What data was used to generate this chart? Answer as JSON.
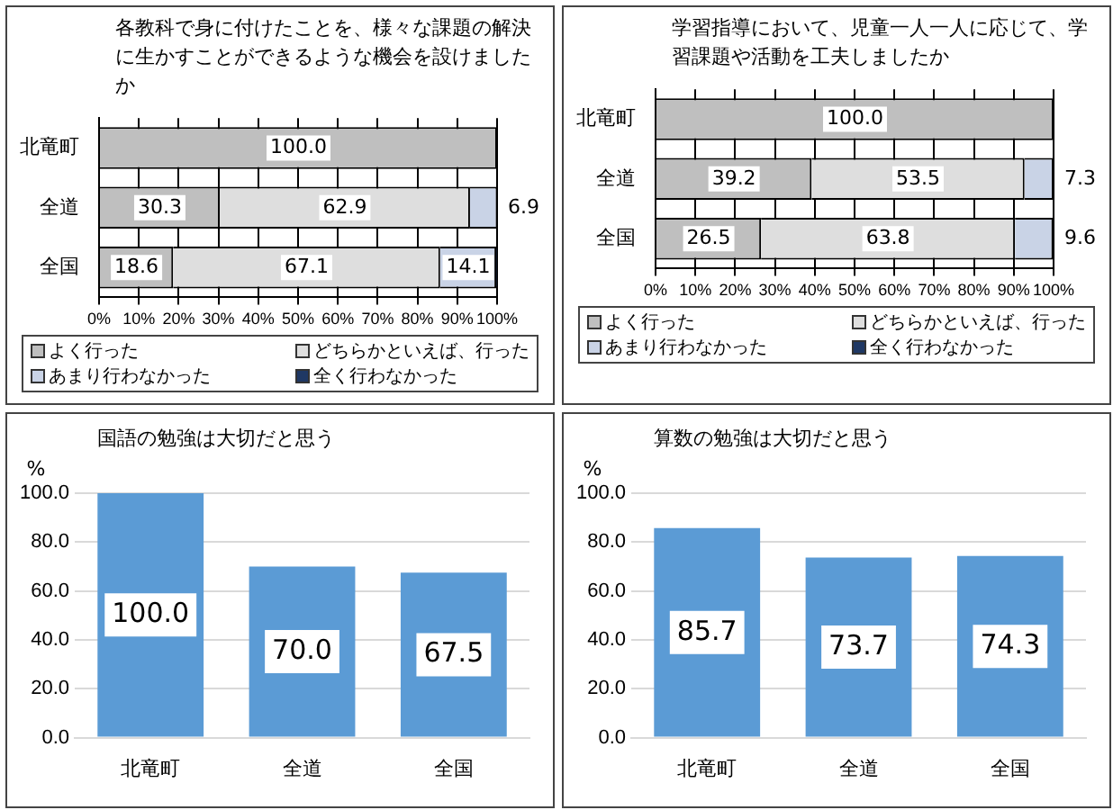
{
  "chart_data": [
    {
      "type": "bar",
      "orientation": "horizontal",
      "stacked": true,
      "title": "各教科で身に付けたことを、様々な課題の解決に生かすことができるような機会を設けましたか",
      "categories": [
        "北竜町",
        "全道",
        "全国"
      ],
      "series": [
        {
          "name": "よく行った",
          "color": "#bfbfbf",
          "values": [
            100,
            30.3,
            18.6
          ],
          "value_labels": [
            "100.0",
            "30.3",
            "18.6"
          ]
        },
        {
          "name": "どちらかといえば、行った",
          "color": "#dedede",
          "values": [
            0,
            62.9,
            67.1
          ],
          "value_labels": [
            null,
            "62.9",
            "67.1"
          ]
        },
        {
          "name": "あまり行わなかった",
          "color": "#c9d3e6",
          "values": [
            0,
            6.9,
            14.1
          ],
          "value_labels": [
            null,
            "6.9",
            "14.1"
          ]
        },
        {
          "name": "全く行わなかった",
          "color": "#1f3864",
          "values": [
            0,
            0,
            0.2
          ],
          "value_labels": [
            null,
            null,
            null
          ]
        }
      ],
      "xlim": [
        0,
        100
      ],
      "xticks": [
        {
          "value": 0,
          "label": "0%"
        },
        {
          "value": 10,
          "label": "10%"
        },
        {
          "value": 20,
          "label": "20%"
        },
        {
          "value": 30,
          "label": "30%"
        },
        {
          "value": 40,
          "label": "40%"
        },
        {
          "value": 50,
          "label": "50%"
        },
        {
          "value": 60,
          "label": "60%"
        },
        {
          "value": 70,
          "label": "70%"
        },
        {
          "value": 80,
          "label": "80%"
        },
        {
          "value": 90,
          "label": "90%"
        },
        {
          "value": 100,
          "label": "100%"
        }
      ],
      "grid": "x",
      "legend": "bottom"
    },
    {
      "type": "bar",
      "orientation": "horizontal",
      "stacked": true,
      "title": "学習指導において、児童一人一人に応じて、学習課題や活動を工夫しましたか",
      "categories": [
        "北竜町",
        "全道",
        "全国"
      ],
      "series": [
        {
          "name": "よく行った",
          "color": "#bfbfbf",
          "values": [
            100,
            39.2,
            26.5
          ],
          "value_labels": [
            "100.0",
            "39.2",
            "26.5"
          ]
        },
        {
          "name": "どちらかといえば、行った",
          "color": "#dedede",
          "values": [
            0,
            53.5,
            63.8
          ],
          "value_labels": [
            null,
            "53.5",
            "63.8"
          ]
        },
        {
          "name": "あまり行わなかった",
          "color": "#c9d3e6",
          "values": [
            0,
            7.3,
            9.6
          ],
          "value_labels": [
            null,
            "7.3",
            "9.6"
          ]
        },
        {
          "name": "全く行わなかった",
          "color": "#1f3864",
          "values": [
            0,
            0,
            0.1
          ],
          "value_labels": [
            null,
            null,
            null
          ]
        }
      ],
      "xlim": [
        0,
        100
      ],
      "xticks": [
        {
          "value": 0,
          "label": "0%"
        },
        {
          "value": 10,
          "label": "10%"
        },
        {
          "value": 20,
          "label": "20%"
        },
        {
          "value": 30,
          "label": "30%"
        },
        {
          "value": 40,
          "label": "40%"
        },
        {
          "value": 50,
          "label": "50%"
        },
        {
          "value": 60,
          "label": "60%"
        },
        {
          "value": 70,
          "label": "70%"
        },
        {
          "value": 80,
          "label": "80%"
        },
        {
          "value": 90,
          "label": "90%"
        },
        {
          "value": 100,
          "label": "100%"
        }
      ],
      "grid": "x",
      "legend": "bottom"
    },
    {
      "type": "bar",
      "title": "国語の勉強は大切だと思う",
      "ylabel": "%",
      "categories": [
        "北竜町",
        "全道",
        "全国"
      ],
      "values": [
        100,
        70,
        67.5
      ],
      "value_labels": [
        "100.0",
        "70.0",
        "67.5"
      ],
      "color": "#5b9bd5",
      "ylim": [
        0,
        100
      ],
      "yticks": [
        {
          "value": 0,
          "label": "0.0"
        },
        {
          "value": 20,
          "label": "20.0"
        },
        {
          "value": 40,
          "label": "40.0"
        },
        {
          "value": 60,
          "label": "60.0"
        },
        {
          "value": 80,
          "label": "80.0"
        },
        {
          "value": 100,
          "label": "100.0"
        }
      ],
      "grid": "y"
    },
    {
      "type": "bar",
      "title": "算数の勉強は大切だと思う",
      "ylabel": "%",
      "categories": [
        "北竜町",
        "全道",
        "全国"
      ],
      "values": [
        85.7,
        73.7,
        74.3
      ],
      "value_labels": [
        "85.7",
        "73.7",
        "74.3"
      ],
      "color": "#5b9bd5",
      "ylim": [
        0,
        100
      ],
      "yticks": [
        {
          "value": 0,
          "label": "0.0"
        },
        {
          "value": 20,
          "label": "20.0"
        },
        {
          "value": 40,
          "label": "40.0"
        },
        {
          "value": 60,
          "label": "60.0"
        },
        {
          "value": 80,
          "label": "80.0"
        },
        {
          "value": 100,
          "label": "100.0"
        }
      ],
      "grid": "y"
    }
  ]
}
